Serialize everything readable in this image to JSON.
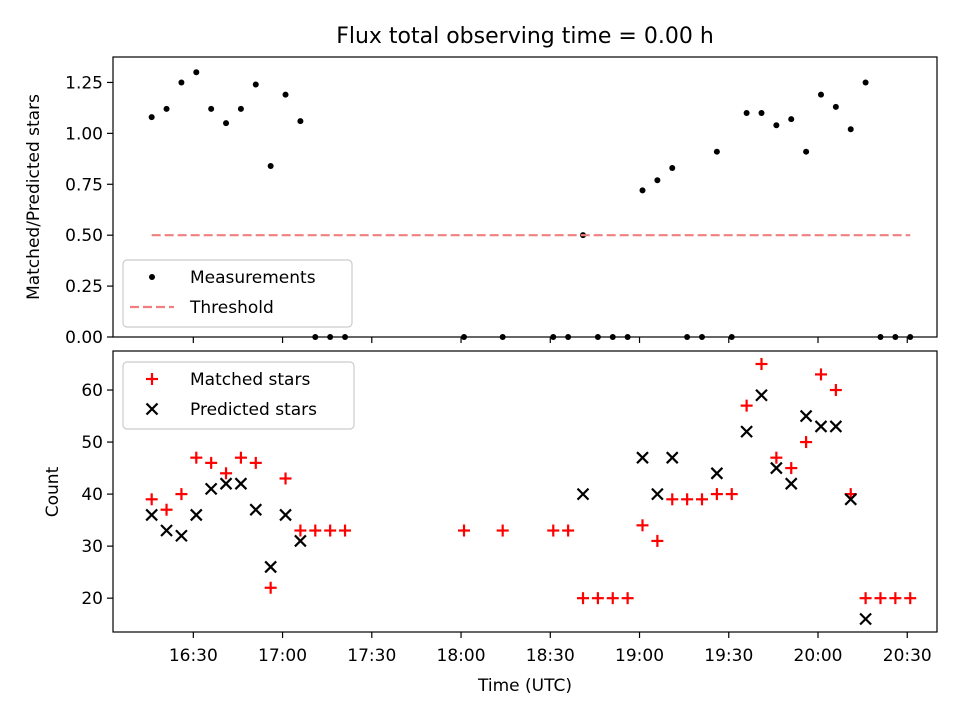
{
  "chart_data": [
    {
      "type": "scatter",
      "title": "Flux total observing time = 0.00 h",
      "xlabel": "",
      "ylabel": "Matched/Predicted stars",
      "ylim": [
        0,
        1.375
      ],
      "yticks": [
        "0.00",
        "0.25",
        "0.50",
        "0.75",
        "1.00",
        "1.25"
      ],
      "ytick_values": [
        0,
        0.25,
        0.5,
        0.75,
        1.0,
        1.25
      ],
      "legend_position": "lower-left",
      "series": [
        {
          "name": "Measurements",
          "marker": "dot",
          "color": "#000000",
          "points": [
            [
              "16:16",
              1.08
            ],
            [
              "16:21",
              1.12
            ],
            [
              "16:26",
              1.25
            ],
            [
              "16:31",
              1.3
            ],
            [
              "16:36",
              1.12
            ],
            [
              "16:41",
              1.05
            ],
            [
              "16:46",
              1.12
            ],
            [
              "16:51",
              1.24
            ],
            [
              "16:56",
              0.84
            ],
            [
              "17:01",
              1.19
            ],
            [
              "17:06",
              1.06
            ],
            [
              "17:11",
              0
            ],
            [
              "17:16",
              0
            ],
            [
              "17:21",
              0
            ],
            [
              "18:01",
              0
            ],
            [
              "18:14",
              0
            ],
            [
              "18:31",
              0
            ],
            [
              "18:36",
              0
            ],
            [
              "18:41",
              0.5
            ],
            [
              "18:46",
              0
            ],
            [
              "18:51",
              0
            ],
            [
              "18:56",
              0
            ],
            [
              "19:01",
              0.72
            ],
            [
              "19:06",
              0.77
            ],
            [
              "19:11",
              0.83
            ],
            [
              "19:16",
              0
            ],
            [
              "19:21",
              0
            ],
            [
              "19:26",
              0.91
            ],
            [
              "19:31",
              0
            ],
            [
              "19:36",
              1.1
            ],
            [
              "19:41",
              1.1
            ],
            [
              "19:46",
              1.04
            ],
            [
              "19:51",
              1.07
            ],
            [
              "19:56",
              0.91
            ],
            [
              "20:01",
              1.19
            ],
            [
              "20:06",
              1.13
            ],
            [
              "20:11",
              1.02
            ],
            [
              "20:16",
              1.25
            ],
            [
              "20:21",
              0
            ],
            [
              "20:26",
              0
            ],
            [
              "20:31",
              0
            ]
          ]
        },
        {
          "name": "Threshold",
          "style": "dashed",
          "color": "#f08080",
          "points": [
            [
              "16:16",
              0.5
            ],
            [
              "20:31",
              0.5
            ]
          ]
        }
      ]
    },
    {
      "type": "scatter",
      "title": "",
      "xlabel": "Time (UTC)",
      "ylabel": "Count",
      "ylim": [
        13.5,
        67.5
      ],
      "yticks": [
        "20",
        "30",
        "40",
        "50",
        "60"
      ],
      "ytick_values": [
        20,
        30,
        40,
        50,
        60
      ],
      "xticks": [
        "16:30",
        "17:00",
        "17:30",
        "18:00",
        "18:30",
        "19:00",
        "19:30",
        "20:00",
        "20:30"
      ],
      "legend_position": "upper-left",
      "series": [
        {
          "name": "Matched stars",
          "marker": "plus",
          "color": "#ff0000",
          "points": [
            [
              "16:16",
              39
            ],
            [
              "16:21",
              37
            ],
            [
              "16:26",
              40
            ],
            [
              "16:31",
              47
            ],
            [
              "16:36",
              46
            ],
            [
              "16:41",
              44
            ],
            [
              "16:46",
              47
            ],
            [
              "16:51",
              46
            ],
            [
              "16:56",
              22
            ],
            [
              "17:01",
              43
            ],
            [
              "17:06",
              33
            ],
            [
              "17:11",
              33
            ],
            [
              "17:16",
              33
            ],
            [
              "17:21",
              33
            ],
            [
              "18:01",
              33
            ],
            [
              "18:14",
              33
            ],
            [
              "18:31",
              33
            ],
            [
              "18:36",
              33
            ],
            [
              "18:41",
              20
            ],
            [
              "18:46",
              20
            ],
            [
              "18:51",
              20
            ],
            [
              "18:56",
              20
            ],
            [
              "19:01",
              34
            ],
            [
              "19:06",
              31
            ],
            [
              "19:11",
              39
            ],
            [
              "19:16",
              39
            ],
            [
              "19:21",
              39
            ],
            [
              "19:26",
              40
            ],
            [
              "19:31",
              40
            ],
            [
              "19:36",
              57
            ],
            [
              "19:41",
              65
            ],
            [
              "19:46",
              47
            ],
            [
              "19:51",
              45
            ],
            [
              "19:56",
              50
            ],
            [
              "20:01",
              63
            ],
            [
              "20:06",
              60
            ],
            [
              "20:11",
              40
            ],
            [
              "20:16",
              20
            ],
            [
              "20:21",
              20
            ],
            [
              "20:26",
              20
            ],
            [
              "20:31",
              20
            ]
          ]
        },
        {
          "name": "Predicted stars",
          "marker": "x",
          "color": "#000000",
          "points": [
            [
              "16:16",
              36
            ],
            [
              "16:21",
              33
            ],
            [
              "16:26",
              32
            ],
            [
              "16:31",
              36
            ],
            [
              "16:36",
              41
            ],
            [
              "16:41",
              42
            ],
            [
              "16:46",
              42
            ],
            [
              "16:51",
              37
            ],
            [
              "16:56",
              26
            ],
            [
              "17:01",
              36
            ],
            [
              "17:06",
              31
            ],
            [
              "18:41",
              40
            ],
            [
              "19:01",
              47
            ],
            [
              "19:06",
              40
            ],
            [
              "19:11",
              47
            ],
            [
              "19:26",
              44
            ],
            [
              "19:36",
              52
            ],
            [
              "19:41",
              59
            ],
            [
              "19:46",
              45
            ],
            [
              "19:51",
              42
            ],
            [
              "19:56",
              55
            ],
            [
              "20:01",
              53
            ],
            [
              "20:06",
              53
            ],
            [
              "20:11",
              39
            ],
            [
              "20:16",
              16
            ]
          ]
        }
      ]
    }
  ]
}
